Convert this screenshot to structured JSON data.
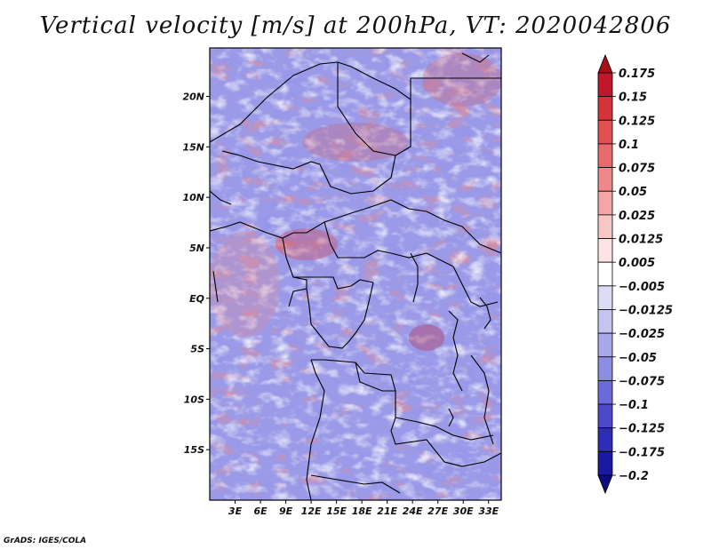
{
  "title": "Vertical velocity [m/s] at 200hPa, VT: 2020042806",
  "credit": "GrADS: IGES/COLA",
  "map": {
    "lat_labels": [
      "20N",
      "15N",
      "10N",
      "5N",
      "EQ",
      "5S",
      "10S",
      "15S"
    ],
    "lon_labels": [
      "3E",
      "6E",
      "9E",
      "12E",
      "15E",
      "18E",
      "21E",
      "24E",
      "27E",
      "30E",
      "33E"
    ],
    "lat_values": [
      20,
      15,
      10,
      5,
      0,
      -5,
      -10,
      -15
    ],
    "lon_values": [
      3,
      6,
      9,
      12,
      15,
      18,
      21,
      24,
      27,
      30,
      33
    ],
    "lat_range": [
      -20,
      24.8
    ],
    "lon_range": [
      0,
      34.5
    ]
  },
  "colorbar": {
    "levels": [
      "0.175",
      "0.15",
      "0.125",
      "0.1",
      "0.075",
      "0.05",
      "0.025",
      "0.0125",
      "0.005",
      "−0.005",
      "−0.0125",
      "−0.025",
      "−0.05",
      "−0.075",
      "−0.1",
      "−0.125",
      "−0.175",
      "−0.2"
    ],
    "colors": [
      "#a50f15",
      "#c0182a",
      "#d3343a",
      "#e05050",
      "#e86a6a",
      "#ef8888",
      "#f4a6a6",
      "#f9c6c6",
      "#fde3e3",
      "#ffffff",
      "#dcdcf7",
      "#c4c4f2",
      "#a7a7ec",
      "#8c8ce3",
      "#6a6ad8",
      "#4a4acb",
      "#2d2db8",
      "#1a1aa0",
      "#0d0d80"
    ],
    "extend": "both"
  }
}
